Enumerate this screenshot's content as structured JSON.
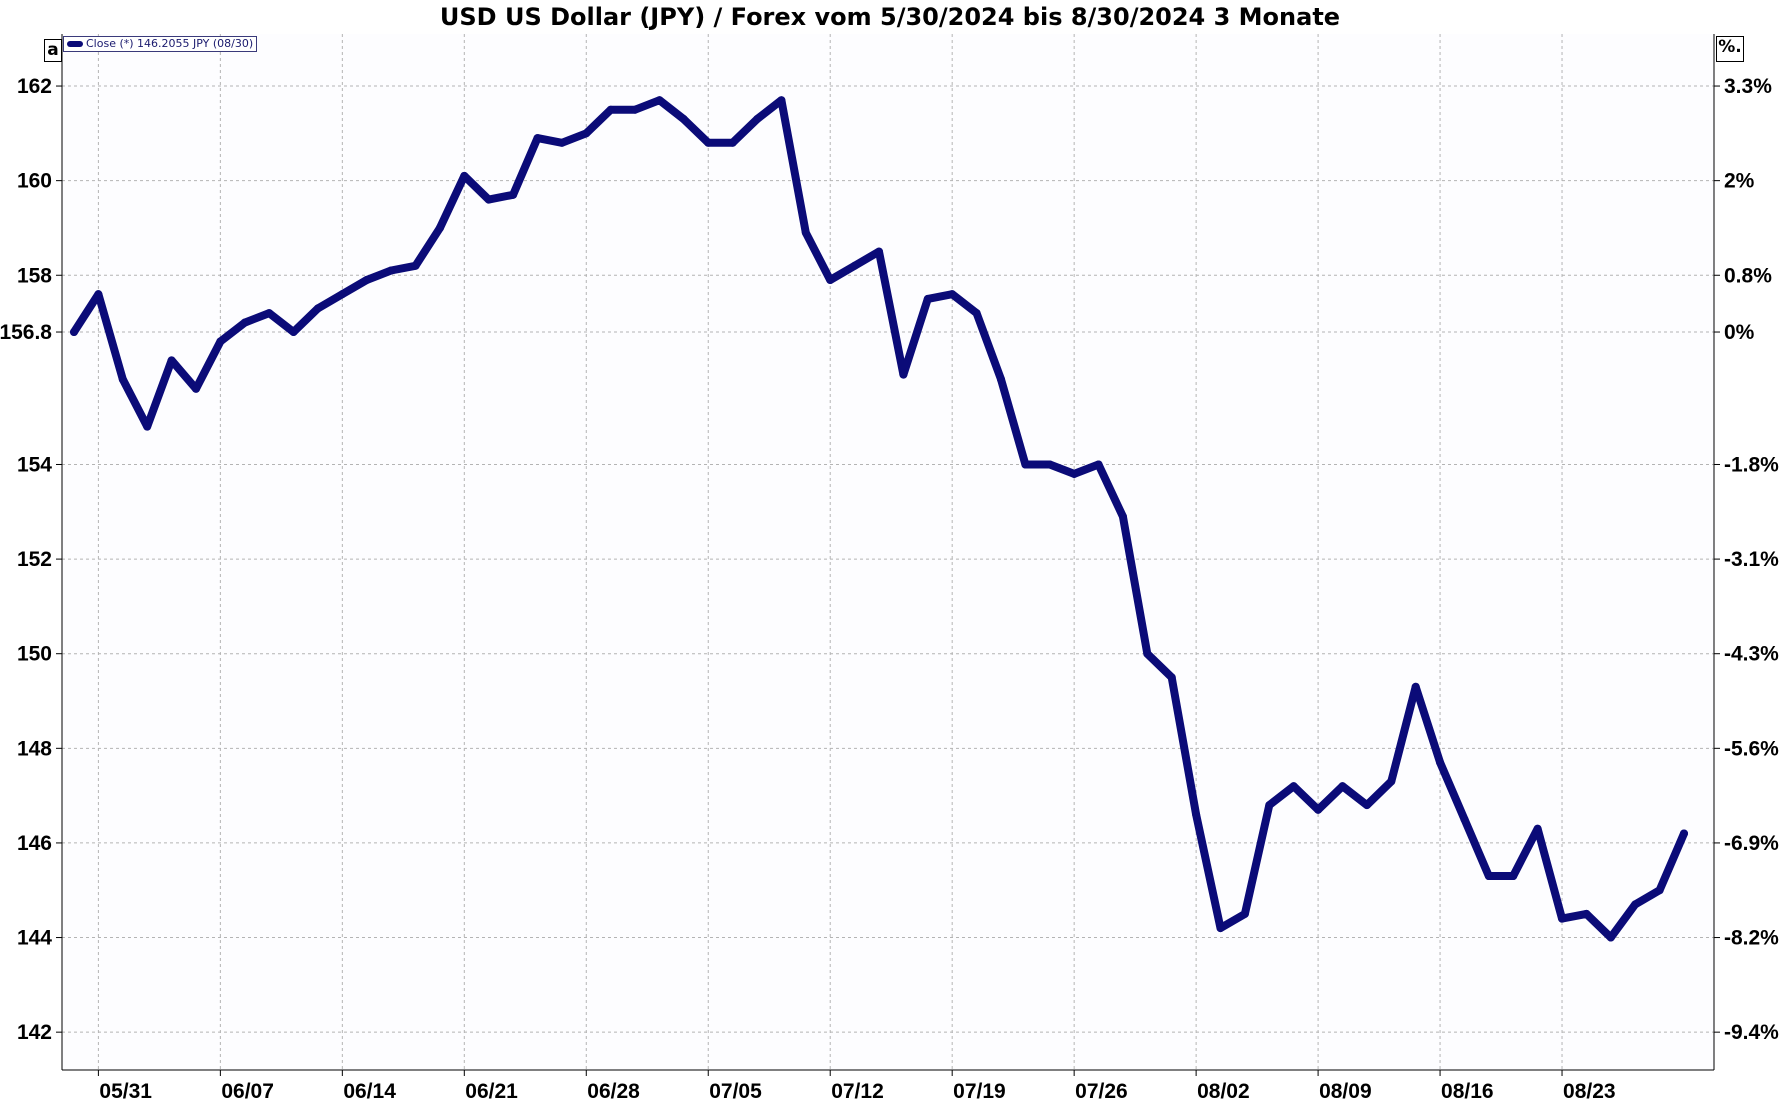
{
  "title": "USD US Dollar (JPY) / Forex vom 5/30/2024 bis 8/30/2024 3 Monate",
  "corner_left": "a",
  "corner_right": "%.",
  "legend": "Close (*) 146.2055 JPY (08/30)",
  "colors": {
    "line": "#0b0b78",
    "grid": "#b4b4b4",
    "plot_bg": "#fdfdff"
  },
  "chart_data": {
    "type": "line",
    "title": "USD US Dollar (JPY) / Forex vom 5/30/2024 bis 8/30/2024 3 Monate",
    "series": [
      {
        "name": "Close (*) 146.2055 JPY (08/30)",
        "x": [
          "05/30",
          "05/31",
          "06/03",
          "06/04",
          "06/05",
          "06/06",
          "06/07",
          "06/10",
          "06/11",
          "06/12",
          "06/13",
          "06/14",
          "06/17",
          "06/18",
          "06/19",
          "06/20",
          "06/21",
          "06/24",
          "06/25",
          "06/26",
          "06/27",
          "06/28",
          "07/01",
          "07/02",
          "07/03",
          "07/04",
          "07/05",
          "07/08",
          "07/09",
          "07/10",
          "07/11",
          "07/12",
          "07/15",
          "07/16",
          "07/17",
          "07/18",
          "07/19",
          "07/22",
          "07/23",
          "07/24",
          "07/25",
          "07/26",
          "07/29",
          "07/30",
          "07/31",
          "08/01",
          "08/02",
          "08/05",
          "08/06",
          "08/07",
          "08/08",
          "08/09",
          "08/12",
          "08/13",
          "08/14",
          "08/15",
          "08/16",
          "08/19",
          "08/20",
          "08/21",
          "08/22",
          "08/23",
          "08/26",
          "08/27",
          "08/28",
          "08/29",
          "08/30"
        ],
        "values": [
          156.8,
          157.6,
          155.8,
          154.8,
          156.2,
          155.6,
          156.6,
          157.0,
          157.2,
          156.8,
          157.3,
          157.6,
          157.9,
          158.1,
          158.2,
          159.0,
          160.1,
          159.6,
          159.7,
          160.9,
          160.8,
          161.0,
          161.5,
          161.5,
          161.7,
          161.3,
          160.8,
          160.8,
          161.3,
          161.7,
          158.9,
          157.9,
          158.2,
          158.5,
          155.9,
          157.5,
          157.6,
          157.2,
          155.8,
          154.0,
          154.0,
          153.8,
          154.0,
          152.9,
          150.0,
          149.5,
          146.6,
          144.2,
          144.5,
          146.8,
          147.2,
          146.7,
          147.2,
          146.8,
          147.3,
          149.3,
          147.7,
          146.5,
          145.3,
          145.3,
          146.3,
          144.4,
          144.5,
          144.0,
          144.7,
          145.0,
          146.2
        ]
      }
    ],
    "x_tick_labels": [
      "05/31",
      "06/07",
      "06/14",
      "06/21",
      "06/28",
      "07/05",
      "07/12",
      "07/19",
      "07/26",
      "08/02",
      "08/09",
      "08/16",
      "08/23"
    ],
    "y_tick_labels": [
      "142",
      "144",
      "146",
      "148",
      "150",
      "152",
      "154",
      "156.8",
      "158",
      "160",
      "162"
    ],
    "y_right_tick_labels": [
      "-9.4%",
      "-8.2%",
      "-6.9%",
      "-5.6%",
      "-4.3%",
      "-3.1%",
      "-1.8%",
      "0%",
      "0.8%",
      "2%",
      "3.3%"
    ],
    "y_right_tick_values": [
      142,
      144,
      146,
      148,
      150,
      152,
      154,
      156.8,
      158,
      160,
      162
    ],
    "ylim": [
      141.2,
      163.1
    ],
    "grid": true,
    "legend_position": "top-left"
  }
}
